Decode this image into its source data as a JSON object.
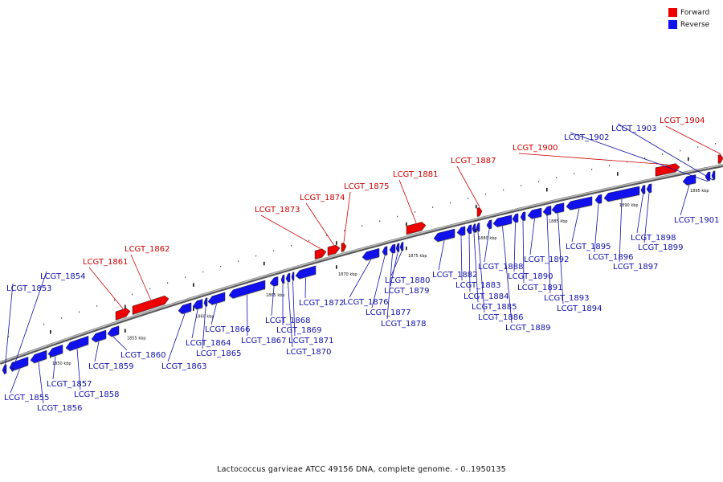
{
  "colors": {
    "forward": "#ee0000",
    "reverse": "#1111ee",
    "axis": "#888888",
    "tick": "#111111",
    "label_forward": "#cc0000",
    "label_reverse": "#1010aa"
  },
  "legend": {
    "forward_label": "Forward",
    "reverse_label": "Reverse"
  },
  "caption": "Lactococcus garvieae ATCC 49156 DNA, complete genome. - 0..1950135",
  "axis_ticks": [
    "1850 kbp",
    "1855 kbp",
    "1860 kbp",
    "1865 kbp",
    "1870 kbp",
    "1875 kbp",
    "1880 kbp",
    "1885 kbp",
    "1890 kbp",
    "1895 kbp"
  ],
  "genes": [
    {
      "name": "LCGT_1853",
      "strand": "reverse"
    },
    {
      "name": "LCGT_1854",
      "strand": "reverse"
    },
    {
      "name": "LCGT_1855",
      "strand": "reverse"
    },
    {
      "name": "LCGT_1856",
      "strand": "reverse"
    },
    {
      "name": "LCGT_1857",
      "strand": "reverse"
    },
    {
      "name": "LCGT_1858",
      "strand": "reverse"
    },
    {
      "name": "LCGT_1859",
      "strand": "reverse"
    },
    {
      "name": "LCGT_1860",
      "strand": "reverse"
    },
    {
      "name": "LCGT_1861",
      "strand": "forward"
    },
    {
      "name": "LCGT_1862",
      "strand": "forward"
    },
    {
      "name": "LCGT_1863",
      "strand": "reverse"
    },
    {
      "name": "LCGT_1864",
      "strand": "reverse"
    },
    {
      "name": "LCGT_1865",
      "strand": "reverse"
    },
    {
      "name": "LCGT_1866",
      "strand": "reverse"
    },
    {
      "name": "LCGT_1867",
      "strand": "reverse"
    },
    {
      "name": "LCGT_1868",
      "strand": "reverse"
    },
    {
      "name": "LCGT_1869",
      "strand": "reverse"
    },
    {
      "name": "LCGT_1870",
      "strand": "reverse"
    },
    {
      "name": "LCGT_1871",
      "strand": "reverse"
    },
    {
      "name": "LCGT_1872",
      "strand": "reverse"
    },
    {
      "name": "LCGT_1873",
      "strand": "forward"
    },
    {
      "name": "LCGT_1874",
      "strand": "forward"
    },
    {
      "name": "LCGT_1875",
      "strand": "forward"
    },
    {
      "name": "LCGT_1876",
      "strand": "reverse"
    },
    {
      "name": "LCGT_1877",
      "strand": "reverse"
    },
    {
      "name": "LCGT_1878",
      "strand": "reverse"
    },
    {
      "name": "LCGT_1879",
      "strand": "reverse"
    },
    {
      "name": "LCGT_1880",
      "strand": "reverse"
    },
    {
      "name": "LCGT_1881",
      "strand": "forward"
    },
    {
      "name": "LCGT_1882",
      "strand": "reverse"
    },
    {
      "name": "LCGT_1883",
      "strand": "reverse"
    },
    {
      "name": "LCGT_1884",
      "strand": "reverse"
    },
    {
      "name": "LCGT_1885",
      "strand": "reverse"
    },
    {
      "name": "LCGT_1886",
      "strand": "reverse"
    },
    {
      "name": "LCGT_1887",
      "strand": "forward"
    },
    {
      "name": "LCGT_1888",
      "strand": "reverse"
    },
    {
      "name": "LCGT_1889",
      "strand": "reverse"
    },
    {
      "name": "LCGT_1890",
      "strand": "reverse"
    },
    {
      "name": "LCGT_1891",
      "strand": "reverse"
    },
    {
      "name": "LCGT_1892",
      "strand": "reverse"
    },
    {
      "name": "LCGT_1893",
      "strand": "reverse"
    },
    {
      "name": "LCGT_1894",
      "strand": "reverse"
    },
    {
      "name": "LCGT_1895",
      "strand": "reverse"
    },
    {
      "name": "LCGT_1896",
      "strand": "reverse"
    },
    {
      "name": "LCGT_1897",
      "strand": "reverse"
    },
    {
      "name": "LCGT_1898",
      "strand": "reverse"
    },
    {
      "name": "LCGT_1899",
      "strand": "reverse"
    },
    {
      "name": "LCGT_1900",
      "strand": "forward"
    },
    {
      "name": "LCGT_1901",
      "strand": "reverse"
    },
    {
      "name": "LCGT_1902",
      "strand": "reverse"
    },
    {
      "name": "LCGT_1903",
      "strand": "reverse"
    },
    {
      "name": "LCGT_1904",
      "strand": "forward"
    }
  ]
}
